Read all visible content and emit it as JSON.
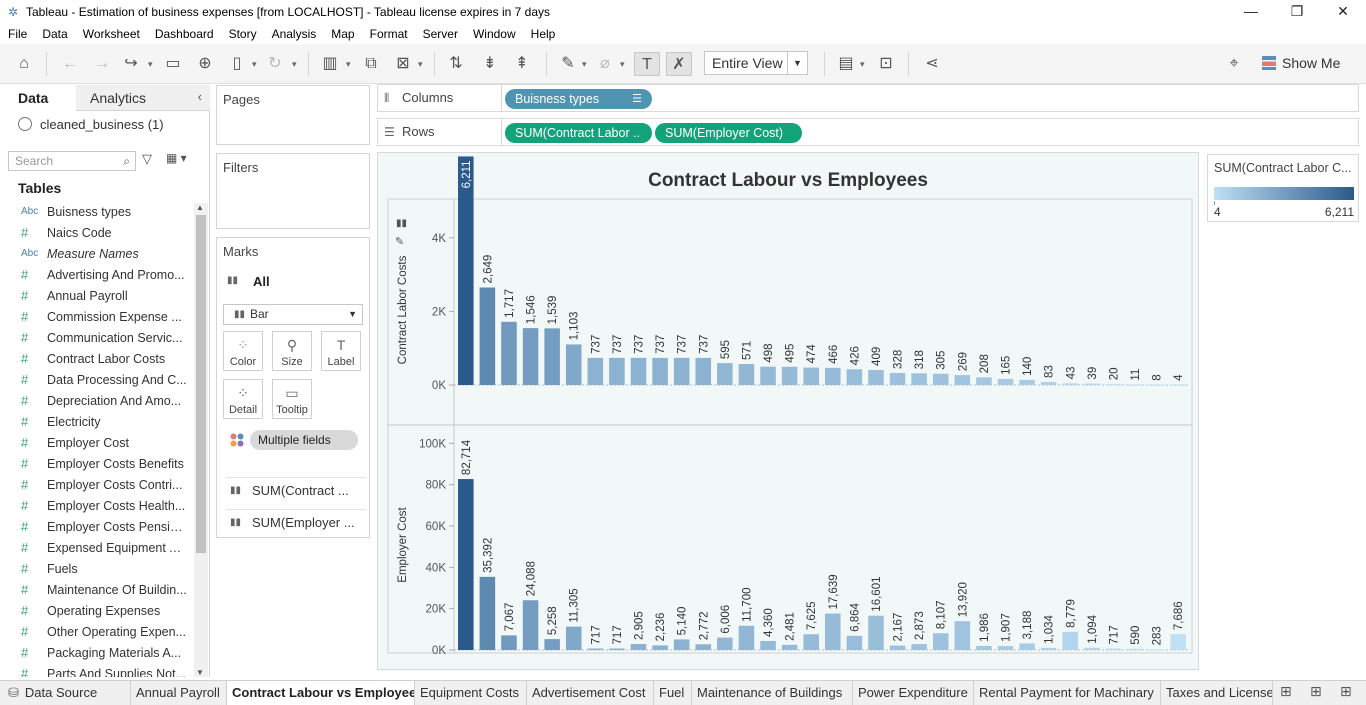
{
  "window": {
    "title": "Tableau - Estimation of business expenses [from LOCALHOST] - Tableau license expires in 7 days",
    "controls": [
      "—",
      "❐",
      "✕"
    ]
  },
  "menu": [
    "File",
    "Data",
    "Worksheet",
    "Dashboard",
    "Story",
    "Analysis",
    "Map",
    "Format",
    "Server",
    "Window",
    "Help"
  ],
  "toolbar": {
    "fit_value": "Entire View",
    "show_me": "Show Me"
  },
  "data_pane": {
    "tab_data": "Data",
    "tab_analytics": "Analytics",
    "datasource": "cleaned_business (1)",
    "search_placeholder": "Search",
    "tables_heading": "Tables",
    "fields": [
      {
        "type": "Abc",
        "name": "Buisness types"
      },
      {
        "type": "#",
        "name": "Naics Code"
      },
      {
        "type": "Abc",
        "name": "Measure Names"
      },
      {
        "type": "#",
        "name": "Advertising And Promo..."
      },
      {
        "type": "#",
        "name": "Annual Payroll"
      },
      {
        "type": "#",
        "name": "Commission Expense ..."
      },
      {
        "type": "#",
        "name": "Communication Servic..."
      },
      {
        "type": "#",
        "name": "Contract Labor Costs"
      },
      {
        "type": "#",
        "name": "Data Processing And C..."
      },
      {
        "type": "#",
        "name": "Depreciation And Amo..."
      },
      {
        "type": "#",
        "name": "Electricity"
      },
      {
        "type": "#",
        "name": "Employer Cost"
      },
      {
        "type": "#",
        "name": "Employer Costs Benefits"
      },
      {
        "type": "#",
        "name": "Employer Costs Contri..."
      },
      {
        "type": "#",
        "name": "Employer Costs Health..."
      },
      {
        "type": "#",
        "name": "Employer Costs Pensio..."
      },
      {
        "type": "#",
        "name": "Expensed Equipment A..."
      },
      {
        "type": "#",
        "name": "Fuels"
      },
      {
        "type": "#",
        "name": "Maintenance Of Buildin..."
      },
      {
        "type": "#",
        "name": "Operating Expenses"
      },
      {
        "type": "#",
        "name": "Other Operating Expen..."
      },
      {
        "type": "#",
        "name": "Packaging Materials A..."
      },
      {
        "type": "#",
        "name": "Parts And Supplies Not..."
      }
    ]
  },
  "cards": {
    "pages": "Pages",
    "filters": "Filters",
    "marks": "Marks",
    "marks_all": "All",
    "mark_type": "Bar",
    "buttons": {
      "color": "Color",
      "size": "Size",
      "label": "Label",
      "detail": "Detail",
      "tooltip": "Tooltip"
    },
    "multiple_fields": "Multiple fields",
    "measure_pills": [
      "SUM(Contract ...",
      "SUM(Employer ..."
    ]
  },
  "shelves": {
    "columns_label": "Columns",
    "rows_label": "Rows",
    "columns_pill": "Buisness types",
    "rows_pills": [
      "SUM(Contract Labor ..",
      "SUM(Employer Cost)"
    ]
  },
  "legend": {
    "title": "SUM(Contract Labor C...",
    "min": "4",
    "max": "6,211",
    "color_low": "#bfe0f5",
    "color_high": "#2a5a8c"
  },
  "chart_data": {
    "type": "bar",
    "title": "Contract Labour vs Employees",
    "panes": [
      {
        "ylabel": "Contract Labor Costs",
        "ylim": [
          0,
          5000
        ],
        "ticks": [
          "0K",
          "2K",
          "4K"
        ],
        "tick_values": [
          0,
          2000,
          4000
        ],
        "values": [
          6211,
          2649,
          1717,
          1546,
          1539,
          1103,
          737,
          737,
          737,
          737,
          737,
          737,
          595,
          571,
          498,
          495,
          474,
          466,
          426,
          409,
          328,
          318,
          305,
          269,
          208,
          165,
          140,
          83,
          43,
          39,
          20,
          11,
          8,
          4
        ],
        "labels": [
          "6,211",
          "2,649",
          "1,717",
          "1,546",
          "1,539",
          "1,103",
          "737",
          "737",
          "737",
          "737",
          "737",
          "737",
          "595",
          "571",
          "498",
          "495",
          "474",
          "466",
          "426",
          "409",
          "328",
          "318",
          "305",
          "269",
          "208",
          "165",
          "140",
          "83",
          "43",
          "39",
          "20",
          "11",
          "8",
          "4"
        ]
      },
      {
        "ylabel": "Employer Cost",
        "ylim": [
          0,
          105000
        ],
        "ticks": [
          "0K",
          "20K",
          "40K",
          "60K",
          "80K",
          "100K"
        ],
        "tick_values": [
          0,
          20000,
          40000,
          60000,
          80000,
          100000
        ],
        "values": [
          82714,
          35392,
          7067,
          24088,
          5258,
          11305,
          717,
          717,
          2905,
          2236,
          5140,
          2772,
          6006,
          11700,
          4360,
          2481,
          7625,
          17639,
          6864,
          16601,
          2167,
          2873,
          8107,
          13920,
          1986,
          1907,
          3188,
          1034,
          8779,
          1094,
          717,
          590,
          283,
          7686
        ],
        "labels": [
          "82,714",
          "35,392",
          "7,067",
          "24,088",
          "5,258",
          "11,305",
          "717",
          "717",
          "2,905",
          "2,236",
          "5,140",
          "2,772",
          "6,006",
          "11,700",
          "4,360",
          "2,481",
          "7,625",
          "17,639",
          "6,864",
          "16,601",
          "2,167",
          "2,873",
          "8,107",
          "13,920",
          "1,986",
          "1,907",
          "3,188",
          "1,034",
          "8,779",
          "1,094",
          "717",
          "590",
          "283",
          "7,686"
        ]
      }
    ]
  },
  "sheet_tabs": {
    "data_source": "Data Source",
    "tabs": [
      "Annual Payroll",
      "Contract Labour vs Employees",
      "Equipment Costs",
      "Advertisement Cost",
      "Fuel",
      "Maintenance of Buildings",
      "Power Expenditure",
      "Rental Payment for Machinary",
      "Taxes and License"
    ],
    "active_index": 1
  }
}
